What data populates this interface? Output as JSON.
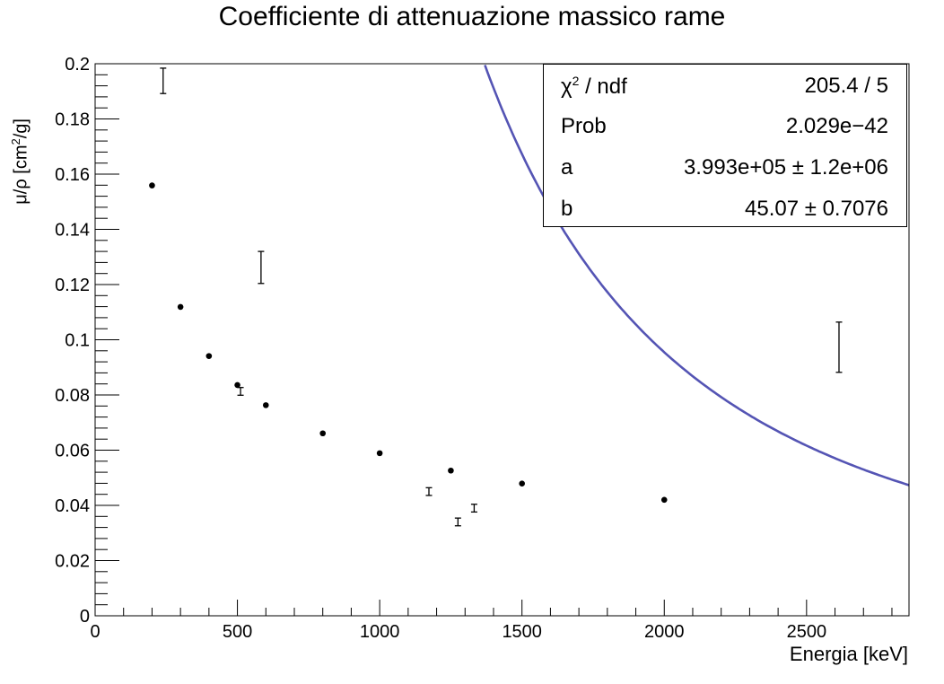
{
  "chart_data": {
    "type": "scatter",
    "title": "Coefficiente di attenuazione massico rame",
    "xlabel": "Energia [keV]",
    "ylabel_main": "μ/ρ [cm",
    "ylabel_sup": "2",
    "ylabel_tail": "/g]",
    "xlim": [
      0,
      2860
    ],
    "ylim": [
      0,
      0.2
    ],
    "x_ticks": [
      "0",
      "500",
      "1000",
      "1500",
      "2000",
      "2500"
    ],
    "y_ticks": [
      "0",
      "0.02",
      "0.04",
      "0.06",
      "0.08",
      "0.1",
      "0.12",
      "0.14",
      "0.16",
      "0.18",
      "0.2"
    ],
    "grid": false,
    "colors": {
      "fit": "#5454b4",
      "points": "#000000"
    },
    "series": [
      {
        "kind": "points",
        "points": [
          {
            "x": 200,
            "y": 0.1559
          },
          {
            "x": 300,
            "y": 0.1119
          },
          {
            "x": 400,
            "y": 0.0941
          },
          {
            "x": 500,
            "y": 0.0836
          },
          {
            "x": 600,
            "y": 0.0763
          },
          {
            "x": 800,
            "y": 0.0661
          },
          {
            "x": 1000,
            "y": 0.0589
          },
          {
            "x": 1250,
            "y": 0.0526
          },
          {
            "x": 1500,
            "y": 0.0479
          },
          {
            "x": 2000,
            "y": 0.042
          }
        ]
      },
      {
        "kind": "errorbars",
        "points": [
          {
            "x": 239,
            "y": 0.1938,
            "err": 0.0046
          },
          {
            "x": 511,
            "y": 0.0813,
            "err": 0.0014
          },
          {
            "x": 583,
            "y": 0.1262,
            "err": 0.0058
          },
          {
            "x": 1173,
            "y": 0.045,
            "err": 0.0014
          },
          {
            "x": 1275,
            "y": 0.034,
            "err": 0.0014
          },
          {
            "x": 1332,
            "y": 0.039,
            "err": 0.0014
          },
          {
            "x": 2614,
            "y": 0.0973,
            "err": 0.0091
          }
        ]
      },
      {
        "kind": "fit",
        "a": 399300,
        "b": 45.07,
        "x_range": [
          230,
          2860
        ]
      }
    ],
    "stats_box": [
      {
        "key": "χ",
        "key_sup": "2",
        "key_tail": " / ndf",
        "value": "205.4 / 5"
      },
      {
        "key": "Prob",
        "key_sup": "",
        "key_tail": "",
        "value": "2.029e−42"
      },
      {
        "key": "a",
        "key_sup": "",
        "key_tail": "",
        "value": "3.993e+05 ± 1.2e+06"
      },
      {
        "key": "b",
        "key_sup": "",
        "key_tail": "",
        "value": "45.07 ± 0.7076"
      }
    ]
  }
}
